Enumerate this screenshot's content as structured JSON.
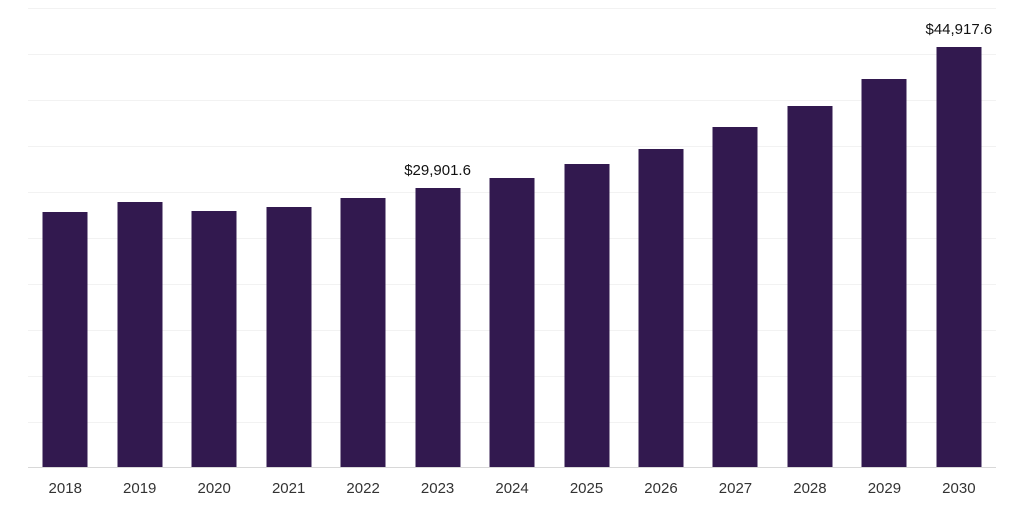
{
  "chart_data": {
    "type": "bar",
    "title": "",
    "xlabel": "",
    "ylabel": "",
    "ylim": [
      0,
      49100
    ],
    "grid": "horizontal",
    "legend": "none",
    "bar_color": "#32194f",
    "categories": [
      "2018",
      "2019",
      "2020",
      "2021",
      "2022",
      "2023",
      "2024",
      "2025",
      "2026",
      "2027",
      "2028",
      "2029",
      "2030"
    ],
    "values": [
      27300,
      28400,
      27450,
      27900,
      28800,
      29901.6,
      30950,
      32400,
      34000,
      36400,
      38600,
      41500,
      44917.6
    ],
    "annotations": [
      {
        "category": "2023",
        "text": "$29,901.6"
      },
      {
        "category": "2030",
        "text": "$44,917.6"
      }
    ]
  }
}
